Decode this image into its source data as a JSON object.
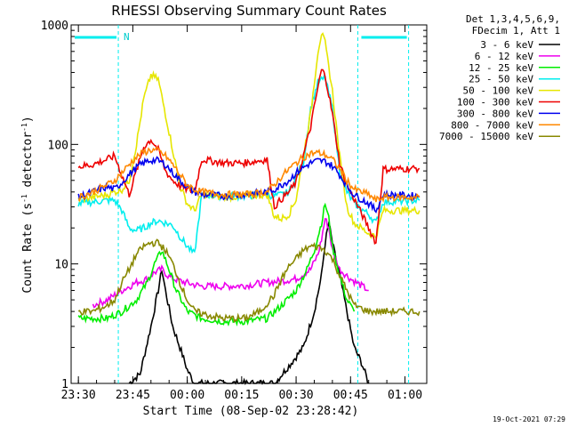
{
  "chart_data": {
    "type": "line",
    "title": "RHESSI Observing Summary Count Rates",
    "xlabel": "Start Time (08-Sep-02 23:28:42)",
    "ylabel_main": "Count Rate (s",
    "ylabel_sup1": "-1",
    "ylabel_mid": " detector",
    "ylabel_sup2": "-1",
    "ylabel_end": ")",
    "y_scale": "log",
    "ylim": [
      1,
      1000
    ],
    "xlim_minutes": [
      -2,
      96
    ],
    "x_tick_labels": [
      "23:30",
      "23:45",
      "00:00",
      "00:15",
      "00:30",
      "00:45",
      "01:00"
    ],
    "y_tick_labels": [
      "1",
      "10",
      "100",
      "1000"
    ],
    "legend_header": [
      "Det 1,3,4,5,6,9,",
      "FDecim 1, Att 1"
    ],
    "legend_position": "top-right",
    "night_marker_label": "N",
    "footer_date": "19-Oct-2021 07:29",
    "series": [
      {
        "name": "3 - 6 keV",
        "color": "#000000",
        "pts": [
          [
            14,
            1
          ],
          [
            17,
            1.2
          ],
          [
            20,
            3
          ],
          [
            22,
            6
          ],
          [
            23,
            9
          ],
          [
            24,
            6
          ],
          [
            26,
            3
          ],
          [
            28,
            2
          ],
          [
            30,
            1.3
          ],
          [
            32,
            1
          ],
          [
            54,
            1
          ],
          [
            58,
            1.4
          ],
          [
            62,
            2
          ],
          [
            65,
            4
          ],
          [
            67,
            8
          ],
          [
            68,
            15
          ],
          [
            69,
            22
          ],
          [
            70,
            15
          ],
          [
            72,
            8
          ],
          [
            74,
            4
          ],
          [
            76,
            2
          ],
          [
            78,
            1.5
          ],
          [
            80,
            1
          ]
        ]
      },
      {
        "name": "6 - 12 keV",
        "color": "#ee00ee",
        "pts": [
          [
            4,
            4.5
          ],
          [
            8,
            5
          ],
          [
            12,
            6
          ],
          [
            16,
            7
          ],
          [
            19,
            7.5
          ],
          [
            21,
            8.5
          ],
          [
            23,
            9
          ],
          [
            25,
            7.8
          ],
          [
            28,
            7.2
          ],
          [
            31,
            6.8
          ],
          [
            34,
            6.5
          ],
          [
            40,
            6.5
          ],
          [
            46,
            6.6
          ],
          [
            52,
            7
          ],
          [
            56,
            7.2
          ],
          [
            60,
            7.5
          ],
          [
            64,
            9
          ],
          [
            66,
            12
          ],
          [
            67,
            16
          ],
          [
            68,
            24
          ],
          [
            69,
            20
          ],
          [
            70,
            13
          ],
          [
            72,
            9
          ],
          [
            75,
            7.5
          ],
          [
            80,
            6
          ]
        ]
      },
      {
        "name": "12 - 25 keV",
        "color": "#00ee00",
        "pts": [
          [
            0,
            3.5
          ],
          [
            4,
            3.5
          ],
          [
            8,
            3.5
          ],
          [
            12,
            4
          ],
          [
            16,
            5
          ],
          [
            19,
            7
          ],
          [
            21,
            10
          ],
          [
            23,
            13
          ],
          [
            25,
            9
          ],
          [
            27,
            6
          ],
          [
            30,
            4
          ],
          [
            34,
            3.5
          ],
          [
            40,
            3.3
          ],
          [
            46,
            3.3
          ],
          [
            52,
            3.5
          ],
          [
            56,
            4.5
          ],
          [
            60,
            6
          ],
          [
            63,
            9
          ],
          [
            65,
            13
          ],
          [
            67,
            22
          ],
          [
            68,
            32
          ],
          [
            69,
            24
          ],
          [
            70,
            14
          ],
          [
            72,
            8
          ],
          [
            74,
            5
          ],
          [
            76,
            4
          ]
        ]
      },
      {
        "name": "25 - 50 keV",
        "color": "#00eeee",
        "pts": [
          [
            0,
            32
          ],
          [
            4,
            33
          ],
          [
            8,
            34
          ],
          [
            10,
            34
          ],
          [
            12,
            28
          ],
          [
            14,
            20
          ],
          [
            16,
            19
          ],
          [
            18,
            20
          ],
          [
            20,
            22
          ],
          [
            22,
            23
          ],
          [
            24,
            22
          ],
          [
            26,
            21
          ],
          [
            28,
            17
          ],
          [
            30,
            14
          ],
          [
            32,
            12
          ],
          [
            34,
            38
          ],
          [
            40,
            37
          ],
          [
            46,
            37
          ],
          [
            52,
            38
          ],
          [
            54,
            37
          ],
          [
            56,
            38
          ],
          [
            58,
            40
          ],
          [
            62,
            70
          ],
          [
            64,
            200
          ],
          [
            66,
            330
          ],
          [
            68,
            360
          ],
          [
            70,
            200
          ],
          [
            72,
            60
          ],
          [
            74,
            40
          ],
          [
            76,
            32
          ],
          [
            80,
            26
          ],
          [
            82,
            22
          ],
          [
            84,
            33
          ],
          [
            94,
            34
          ]
        ]
      },
      {
        "name": "50 - 100 keV",
        "color": "#e6e600",
        "pts": [
          [
            0,
            35
          ],
          [
            4,
            36
          ],
          [
            8,
            38
          ],
          [
            10,
            40
          ],
          [
            12,
            42
          ],
          [
            14,
            50
          ],
          [
            16,
            100
          ],
          [
            18,
            240
          ],
          [
            20,
            380
          ],
          [
            22,
            350
          ],
          [
            24,
            180
          ],
          [
            26,
            90
          ],
          [
            28,
            45
          ],
          [
            30,
            32
          ],
          [
            32,
            28
          ],
          [
            34,
            38
          ],
          [
            40,
            36
          ],
          [
            46,
            37
          ],
          [
            52,
            38
          ],
          [
            54,
            25
          ],
          [
            56,
            24
          ],
          [
            58,
            26
          ],
          [
            60,
            35
          ],
          [
            62,
            80
          ],
          [
            64,
            180
          ],
          [
            66,
            600
          ],
          [
            67,
            850
          ],
          [
            68,
            700
          ],
          [
            70,
            280
          ],
          [
            72,
            80
          ],
          [
            74,
            30
          ],
          [
            76,
            22
          ],
          [
            80,
            18
          ],
          [
            82,
            17
          ],
          [
            84,
            28
          ],
          [
            94,
            28
          ]
        ]
      },
      {
        "name": "100 - 300 keV",
        "color": "#ee0000",
        "pts": [
          [
            0,
            65
          ],
          [
            4,
            68
          ],
          [
            8,
            75
          ],
          [
            10,
            80
          ],
          [
            12,
            55
          ],
          [
            14,
            38
          ],
          [
            16,
            60
          ],
          [
            18,
            95
          ],
          [
            20,
            110
          ],
          [
            22,
            90
          ],
          [
            24,
            60
          ],
          [
            26,
            50
          ],
          [
            28,
            45
          ],
          [
            30,
            42
          ],
          [
            32,
            40
          ],
          [
            34,
            75
          ],
          [
            40,
            70
          ],
          [
            46,
            70
          ],
          [
            52,
            75
          ],
          [
            54,
            30
          ],
          [
            56,
            35
          ],
          [
            58,
            40
          ],
          [
            60,
            48
          ],
          [
            62,
            80
          ],
          [
            64,
            140
          ],
          [
            66,
            300
          ],
          [
            67,
            420
          ],
          [
            68,
            380
          ],
          [
            70,
            180
          ],
          [
            72,
            70
          ],
          [
            74,
            45
          ],
          [
            76,
            35
          ],
          [
            80,
            20
          ],
          [
            82,
            15
          ],
          [
            84,
            62
          ],
          [
            94,
            63
          ]
        ]
      },
      {
        "name": "300 - 800 keV",
        "color": "#0000ee",
        "pts": [
          [
            0,
            36
          ],
          [
            4,
            40
          ],
          [
            8,
            44
          ],
          [
            10,
            42
          ],
          [
            12,
            48
          ],
          [
            14,
            56
          ],
          [
            16,
            64
          ],
          [
            18,
            70
          ],
          [
            20,
            74
          ],
          [
            22,
            73
          ],
          [
            24,
            68
          ],
          [
            26,
            58
          ],
          [
            28,
            50
          ],
          [
            30,
            44
          ],
          [
            32,
            40
          ],
          [
            34,
            38
          ],
          [
            40,
            37
          ],
          [
            46,
            38
          ],
          [
            52,
            40
          ],
          [
            54,
            42
          ],
          [
            56,
            46
          ],
          [
            58,
            50
          ],
          [
            60,
            58
          ],
          [
            62,
            64
          ],
          [
            64,
            70
          ],
          [
            66,
            73
          ],
          [
            68,
            72
          ],
          [
            70,
            66
          ],
          [
            72,
            56
          ],
          [
            74,
            45
          ],
          [
            76,
            38
          ],
          [
            80,
            32
          ],
          [
            82,
            28
          ],
          [
            84,
            38
          ],
          [
            94,
            37
          ]
        ]
      },
      {
        "name": "800 - 7000 keV",
        "color": "#ff8800",
        "pts": [
          [
            0,
            36
          ],
          [
            4,
            40
          ],
          [
            8,
            46
          ],
          [
            10,
            50
          ],
          [
            12,
            58
          ],
          [
            14,
            68
          ],
          [
            16,
            78
          ],
          [
            18,
            86
          ],
          [
            20,
            90
          ],
          [
            22,
            88
          ],
          [
            24,
            80
          ],
          [
            26,
            68
          ],
          [
            28,
            56
          ],
          [
            30,
            46
          ],
          [
            32,
            42
          ],
          [
            34,
            40
          ],
          [
            40,
            38
          ],
          [
            46,
            38
          ],
          [
            52,
            40
          ],
          [
            54,
            46
          ],
          [
            56,
            54
          ],
          [
            58,
            62
          ],
          [
            60,
            70
          ],
          [
            62,
            78
          ],
          [
            64,
            84
          ],
          [
            66,
            85
          ],
          [
            68,
            82
          ],
          [
            70,
            75
          ],
          [
            72,
            62
          ],
          [
            74,
            50
          ],
          [
            76,
            42
          ],
          [
            80,
            38
          ],
          [
            82,
            34
          ],
          [
            84,
            36
          ],
          [
            94,
            36
          ]
        ]
      },
      {
        "name": "7000 - 15000 keV",
        "color": "#888800",
        "pts": [
          [
            0,
            4
          ],
          [
            4,
            4
          ],
          [
            8,
            4.5
          ],
          [
            10,
            5
          ],
          [
            12,
            7
          ],
          [
            14,
            9
          ],
          [
            16,
            12
          ],
          [
            18,
            14
          ],
          [
            20,
            15
          ],
          [
            22,
            15
          ],
          [
            24,
            13
          ],
          [
            26,
            10
          ],
          [
            28,
            7
          ],
          [
            30,
            5
          ],
          [
            32,
            4
          ],
          [
            36,
            3.7
          ],
          [
            40,
            3.5
          ],
          [
            46,
            3.5
          ],
          [
            50,
            4
          ],
          [
            54,
            5.5
          ],
          [
            56,
            7.5
          ],
          [
            58,
            9.5
          ],
          [
            60,
            11
          ],
          [
            62,
            13
          ],
          [
            64,
            14
          ],
          [
            66,
            14
          ],
          [
            68,
            13
          ],
          [
            70,
            11
          ],
          [
            72,
            8
          ],
          [
            74,
            6
          ],
          [
            76,
            4.5
          ],
          [
            80,
            4
          ],
          [
            84,
            4
          ],
          [
            94,
            4
          ]
        ]
      }
    ],
    "night_intervals": [
      [
        -2,
        11
      ],
      [
        77,
        91
      ]
    ],
    "vertical_markers_minutes": [
      11,
      77,
      91
    ]
  }
}
